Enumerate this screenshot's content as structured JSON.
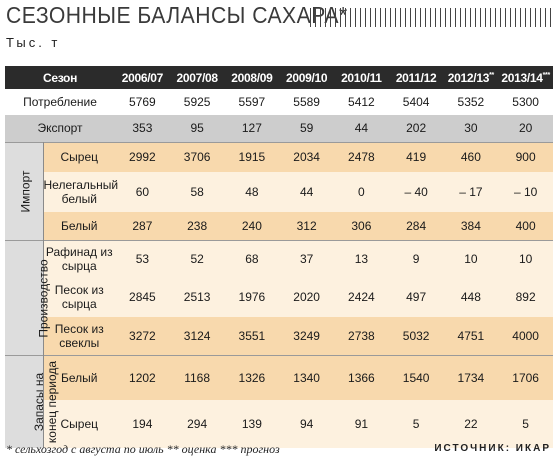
{
  "chart_data": {
    "type": "table",
    "title": "СЕЗОННЫЕ БАЛАНСЫ САХАРА*",
    "subtitle": "Тыс. т",
    "header_label": "Сезон",
    "columns": [
      {
        "label": "2006/07",
        "mark": ""
      },
      {
        "label": "2007/08",
        "mark": ""
      },
      {
        "label": "2008/09",
        "mark": ""
      },
      {
        "label": "2009/10",
        "mark": ""
      },
      {
        "label": "2010/11",
        "mark": ""
      },
      {
        "label": "2011/12",
        "mark": ""
      },
      {
        "label": "2012/13",
        "mark": "**"
      },
      {
        "label": "2013/14",
        "mark": "***"
      }
    ],
    "rows": {
      "consumption": {
        "label": "Потребление",
        "values": [
          "5769",
          "5925",
          "5597",
          "5589",
          "5412",
          "5404",
          "5352",
          "5300"
        ]
      },
      "export": {
        "label": "Экспорт",
        "values": [
          "353",
          "95",
          "127",
          "59",
          "44",
          "202",
          "30",
          "20"
        ]
      },
      "import_raw": {
        "group": "Импорт",
        "label": "Сырец",
        "values": [
          "2992",
          "3706",
          "1915",
          "2034",
          "2478",
          "419",
          "460",
          "900"
        ]
      },
      "import_illegal": {
        "label_line1": "Нелегальный",
        "label_line2": "белый",
        "values": [
          "60",
          "58",
          "48",
          "44",
          "0",
          "– 40",
          "– 17",
          "– 10"
        ]
      },
      "import_white": {
        "label": "Белый",
        "values": [
          "287",
          "238",
          "240",
          "312",
          "306",
          "284",
          "384",
          "400"
        ]
      },
      "prod_refined": {
        "group": "Производство",
        "label_line1": "Рафинад из",
        "label_line2": "сырца",
        "values": [
          "53",
          "52",
          "68",
          "37",
          "13",
          "9",
          "10",
          "10"
        ]
      },
      "prod_sand_raw": {
        "label_line1": "Песок из",
        "label_line2": "сырца",
        "values": [
          "2845",
          "2513",
          "1976",
          "2020",
          "2424",
          "497",
          "448",
          "892"
        ]
      },
      "prod_sand_beet": {
        "label_line1": "Песок из",
        "label_line2": "свеклы",
        "values": [
          "3272",
          "3124",
          "3551",
          "3249",
          "2738",
          "5032",
          "4751",
          "4000"
        ]
      },
      "stocks_white": {
        "group_line1": "Запасы на",
        "group_line2": "конец периода",
        "label": "Белый",
        "values": [
          "1202",
          "1168",
          "1326",
          "1340",
          "1366",
          "1540",
          "1734",
          "1706"
        ]
      },
      "stocks_raw": {
        "label": "Сырец",
        "values": [
          "194",
          "294",
          "139",
          "94",
          "91",
          "5",
          "22",
          "5"
        ]
      }
    },
    "footnote": "* сельхозгод с августа по июль ** оценка *** прогноз",
    "source": "ИСТОЧНИК: ИКАР"
  }
}
